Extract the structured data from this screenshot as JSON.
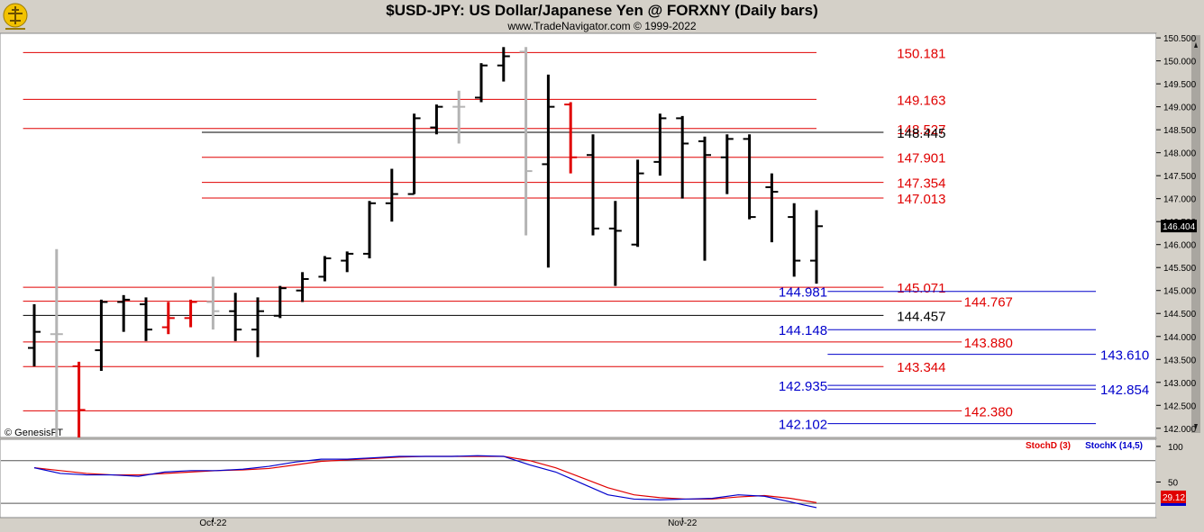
{
  "header": {
    "title": "$USD-JPY:  US Dollar/Japanese Yen @ FORXNY  (Daily bars)",
    "subtitle": "www.TradeNavigator.com © 1999-2022"
  },
  "watermark": "© GenesisFT",
  "colors": {
    "red": "#e00000",
    "blue": "#0000cc",
    "black": "#000000",
    "grey": "#b4b4b4",
    "green": "#00b000"
  },
  "chart_data": {
    "type": "ohlc",
    "price_axis": {
      "ylim": [
        141.8,
        150.6
      ],
      "ticks": [
        "150.500",
        "150.000",
        "149.500",
        "149.000",
        "148.500",
        "148.000",
        "147.500",
        "147.000",
        "146.500",
        "146.000",
        "145.500",
        "145.000",
        "144.500",
        "144.000",
        "143.500",
        "143.000",
        "142.500",
        "142.000"
      ],
      "last_price": "146.404"
    },
    "x_labels": [
      {
        "label": "Oct-22",
        "bar": 8
      },
      {
        "label": "Nov-22",
        "bar": 29
      }
    ],
    "bars": [
      {
        "o": 143.75,
        "h": 144.7,
        "l": 143.35,
        "c": 144.1,
        "col": "k"
      },
      {
        "o": 144.05,
        "h": 145.9,
        "l": 141.8,
        "c": 144.05,
        "col": "g"
      },
      {
        "o": 143.35,
        "h": 143.45,
        "l": 141.8,
        "c": 142.4,
        "col": "r"
      },
      {
        "o": 143.7,
        "h": 144.8,
        "l": 143.25,
        "c": 144.75,
        "col": "k"
      },
      {
        "o": 144.75,
        "h": 144.9,
        "l": 144.1,
        "c": 144.8,
        "col": "k"
      },
      {
        "o": 144.7,
        "h": 144.85,
        "l": 143.9,
        "c": 144.15,
        "col": "k"
      },
      {
        "o": 144.2,
        "h": 144.75,
        "l": 144.05,
        "c": 144.4,
        "col": "r"
      },
      {
        "o": 144.4,
        "h": 144.8,
        "l": 144.2,
        "c": 144.75,
        "col": "r"
      },
      {
        "o": 144.75,
        "h": 145.3,
        "l": 144.15,
        "c": 144.55,
        "col": "g"
      },
      {
        "o": 144.55,
        "h": 144.95,
        "l": 143.9,
        "c": 144.15,
        "col": "k"
      },
      {
        "o": 144.15,
        "h": 144.85,
        "l": 143.55,
        "c": 144.55,
        "col": "k"
      },
      {
        "o": 144.45,
        "h": 145.1,
        "l": 144.4,
        "c": 145.05,
        "col": "k"
      },
      {
        "o": 145.0,
        "h": 145.4,
        "l": 144.75,
        "c": 145.25,
        "col": "k"
      },
      {
        "o": 145.3,
        "h": 145.75,
        "l": 145.2,
        "c": 145.7,
        "col": "k"
      },
      {
        "o": 145.65,
        "h": 145.85,
        "l": 145.4,
        "c": 145.8,
        "col": "k"
      },
      {
        "o": 145.8,
        "h": 146.95,
        "l": 145.7,
        "c": 146.9,
        "col": "k"
      },
      {
        "o": 146.9,
        "h": 147.65,
        "l": 146.5,
        "c": 147.1,
        "col": "k"
      },
      {
        "o": 147.1,
        "h": 148.85,
        "l": 147.1,
        "c": 148.75,
        "col": "k"
      },
      {
        "o": 148.55,
        "h": 149.05,
        "l": 148.4,
        "c": 149.0,
        "col": "k"
      },
      {
        "o": 149.0,
        "h": 149.35,
        "l": 148.2,
        "c": 149.0,
        "col": "g"
      },
      {
        "o": 149.2,
        "h": 149.95,
        "l": 149.1,
        "c": 149.9,
        "col": "k"
      },
      {
        "o": 149.9,
        "h": 150.3,
        "l": 149.55,
        "c": 150.1,
        "col": "k"
      },
      {
        "o": 150.2,
        "h": 150.3,
        "l": 146.2,
        "c": 147.6,
        "col": "g"
      },
      {
        "o": 147.75,
        "h": 149.7,
        "l": 145.5,
        "c": 149.0,
        "col": "k"
      },
      {
        "o": 149.05,
        "h": 149.1,
        "l": 147.55,
        "c": 147.9,
        "col": "r"
      },
      {
        "o": 147.95,
        "h": 148.4,
        "l": 146.2,
        "c": 146.35,
        "col": "k"
      },
      {
        "o": 146.35,
        "h": 146.95,
        "l": 145.1,
        "c": 146.3,
        "col": "k"
      },
      {
        "o": 146.0,
        "h": 147.85,
        "l": 145.95,
        "c": 147.55,
        "col": "k"
      },
      {
        "o": 147.8,
        "h": 148.85,
        "l": 147.5,
        "c": 148.75,
        "col": "k"
      },
      {
        "o": 148.75,
        "h": 148.8,
        "l": 147.0,
        "c": 148.2,
        "col": "k"
      },
      {
        "o": 148.25,
        "h": 148.35,
        "l": 145.65,
        "c": 147.95,
        "col": "k"
      },
      {
        "o": 147.9,
        "h": 148.4,
        "l": 147.1,
        "c": 148.3,
        "col": "k"
      },
      {
        "o": 148.3,
        "h": 148.4,
        "l": 146.55,
        "c": 146.6,
        "col": "k"
      },
      {
        "o": 147.25,
        "h": 147.55,
        "l": 146.05,
        "c": 147.15,
        "col": "k"
      },
      {
        "o": 146.6,
        "h": 146.9,
        "l": 145.3,
        "c": 145.65,
        "col": "k"
      },
      {
        "o": 145.65,
        "h": 146.75,
        "l": 145.15,
        "c": 146.4,
        "col": "k"
      }
    ],
    "levels": [
      {
        "value": 150.181,
        "label": "150.181",
        "color": "red",
        "x1": -0.5,
        "x2": 35,
        "lx": 38.6
      },
      {
        "value": 149.163,
        "label": "149.163",
        "color": "red",
        "x1": -0.5,
        "x2": 35,
        "lx": 38.6
      },
      {
        "value": 148.527,
        "label": "148.527",
        "color": "red",
        "x1": -0.5,
        "x2": 35,
        "lx": 38.6
      },
      {
        "value": 148.445,
        "label": "148.445",
        "color": "black",
        "x1": 7.5,
        "x2": 38,
        "lx": 38.6
      },
      {
        "value": 147.901,
        "label": "147.901",
        "color": "red",
        "x1": 7.5,
        "x2": 38,
        "lx": 38.6
      },
      {
        "value": 147.354,
        "label": "147.354",
        "color": "red",
        "x1": 7.5,
        "x2": 38,
        "lx": 38.6
      },
      {
        "value": 147.013,
        "label": "147.013",
        "color": "red",
        "x1": 7.5,
        "x2": 38,
        "lx": 38.6
      },
      {
        "value": 145.071,
        "label": "145.071",
        "color": "red",
        "x1": -0.5,
        "x2": 38,
        "lx": 38.6
      },
      {
        "value": 144.981,
        "label": "144.981",
        "color": "blue",
        "x1": 35.5,
        "x2": 47.5,
        "lx": 33.3
      },
      {
        "value": 144.767,
        "label": "144.767",
        "color": "red",
        "x1": -0.5,
        "x2": 41.5,
        "lx": 41.6
      },
      {
        "value": 144.457,
        "label": "144.457",
        "color": "black",
        "x1": -0.5,
        "x2": 38,
        "lx": 38.6
      },
      {
        "value": 144.148,
        "label": "144.148",
        "color": "blue",
        "x1": 35.5,
        "x2": 47.5,
        "lx": 33.3
      },
      {
        "value": 143.88,
        "label": "143.880",
        "color": "red",
        "x1": -0.5,
        "x2": 41.5,
        "lx": 41.6
      },
      {
        "value": 143.61,
        "label": "143.610",
        "color": "blue",
        "x1": 35.5,
        "x2": 47.5,
        "lx": 47.7
      },
      {
        "value": 143.344,
        "label": "143.344",
        "color": "red",
        "x1": -0.5,
        "x2": 38,
        "lx": 38.6
      },
      {
        "value": 142.935,
        "label": "142.935",
        "color": "blue",
        "x1": 35.5,
        "x2": 47.5,
        "lx": 33.3
      },
      {
        "value": 142.854,
        "label": "142.854",
        "color": "blue",
        "x1": 35.5,
        "x2": 47.5,
        "lx": 47.7
      },
      {
        "value": 142.38,
        "label": "142.380",
        "color": "red",
        "x1": -0.5,
        "x2": 41.5,
        "lx": 41.6
      },
      {
        "value": 142.102,
        "label": "142.102",
        "color": "blue",
        "x1": 35.5,
        "x2": 47.5,
        "lx": 33.3
      }
    ],
    "stochastic": {
      "ylim": [
        0,
        110
      ],
      "ticks": [
        "100",
        "50"
      ],
      "ref_levels": [
        80,
        20
      ],
      "legend": [
        {
          "label": "StochD (3)",
          "color": "red"
        },
        {
          "label": "StochK (14,5)",
          "color": "blue"
        }
      ],
      "last_value": "29.12",
      "k": [
        70,
        62,
        60,
        60,
        58,
        64,
        66,
        66,
        68,
        72,
        78,
        82,
        82,
        84,
        86,
        86,
        86,
        87,
        86,
        74,
        64,
        48,
        32,
        26,
        25,
        26,
        27,
        32,
        30,
        22,
        14
      ],
      "d": [
        70,
        66,
        62,
        60,
        60,
        62,
        64,
        66,
        67,
        69,
        74,
        79,
        81,
        83,
        85,
        86,
        86,
        86,
        86,
        80,
        70,
        56,
        42,
        32,
        28,
        26,
        26,
        29,
        31,
        27,
        21
      ]
    }
  }
}
